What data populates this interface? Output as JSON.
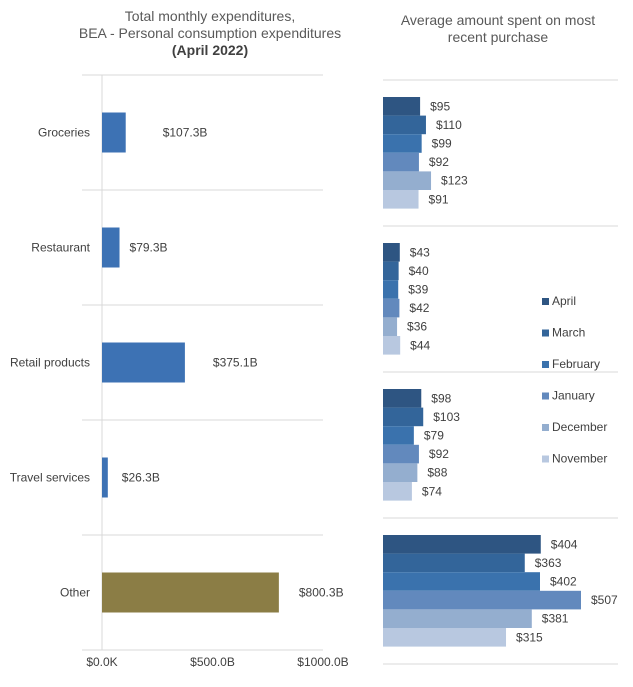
{
  "chart_data": [
    {
      "type": "bar",
      "orientation": "horizontal",
      "title": "Total monthly expenditures,",
      "subtitle": "BEA - Personal consumption expenditures",
      "subtitle2": "(April 2022)",
      "categories": [
        "Groceries",
        "Restaurant",
        "Retail products",
        "Travel services",
        "Other"
      ],
      "values": [
        107.3,
        79.3,
        375.1,
        26.3,
        800.3
      ],
      "data_labels": [
        "$107.3B",
        "$79.3B",
        "$375.1B",
        "$26.3B",
        "$800.3B"
      ],
      "colors": [
        "#3d72b4",
        "#3d72b4",
        "#3d72b4",
        "#3d72b4",
        "#8b7d45"
      ],
      "xlim": [
        0,
        1000
      ],
      "xticks": [
        "$0.0K",
        "$500.0B",
        "$1000.0B"
      ],
      "unit": "billions USD"
    },
    {
      "type": "bar",
      "orientation": "horizontal",
      "title": "Average amount spent on most",
      "title2": "recent purchase",
      "categories": [
        "Groceries",
        "Restaurant",
        "Retail products",
        "Other"
      ],
      "series": [
        {
          "name": "April",
          "color": "#2e5582",
          "values": [
            95,
            43,
            98,
            404
          ]
        },
        {
          "name": "March",
          "color": "#33659a",
          "values": [
            110,
            40,
            103,
            363
          ]
        },
        {
          "name": "February",
          "color": "#3a72ad",
          "values": [
            99,
            39,
            79,
            402
          ]
        },
        {
          "name": "January",
          "color": "#6289bd",
          "values": [
            92,
            42,
            92,
            507
          ]
        },
        {
          "name": "December",
          "color": "#94aecf",
          "values": [
            123,
            36,
            88,
            381
          ]
        },
        {
          "name": "November",
          "color": "#b8c8e0",
          "values": [
            91,
            44,
            74,
            315
          ]
        }
      ],
      "legend_position": "right",
      "xlim": [
        0,
        507
      ]
    }
  ]
}
